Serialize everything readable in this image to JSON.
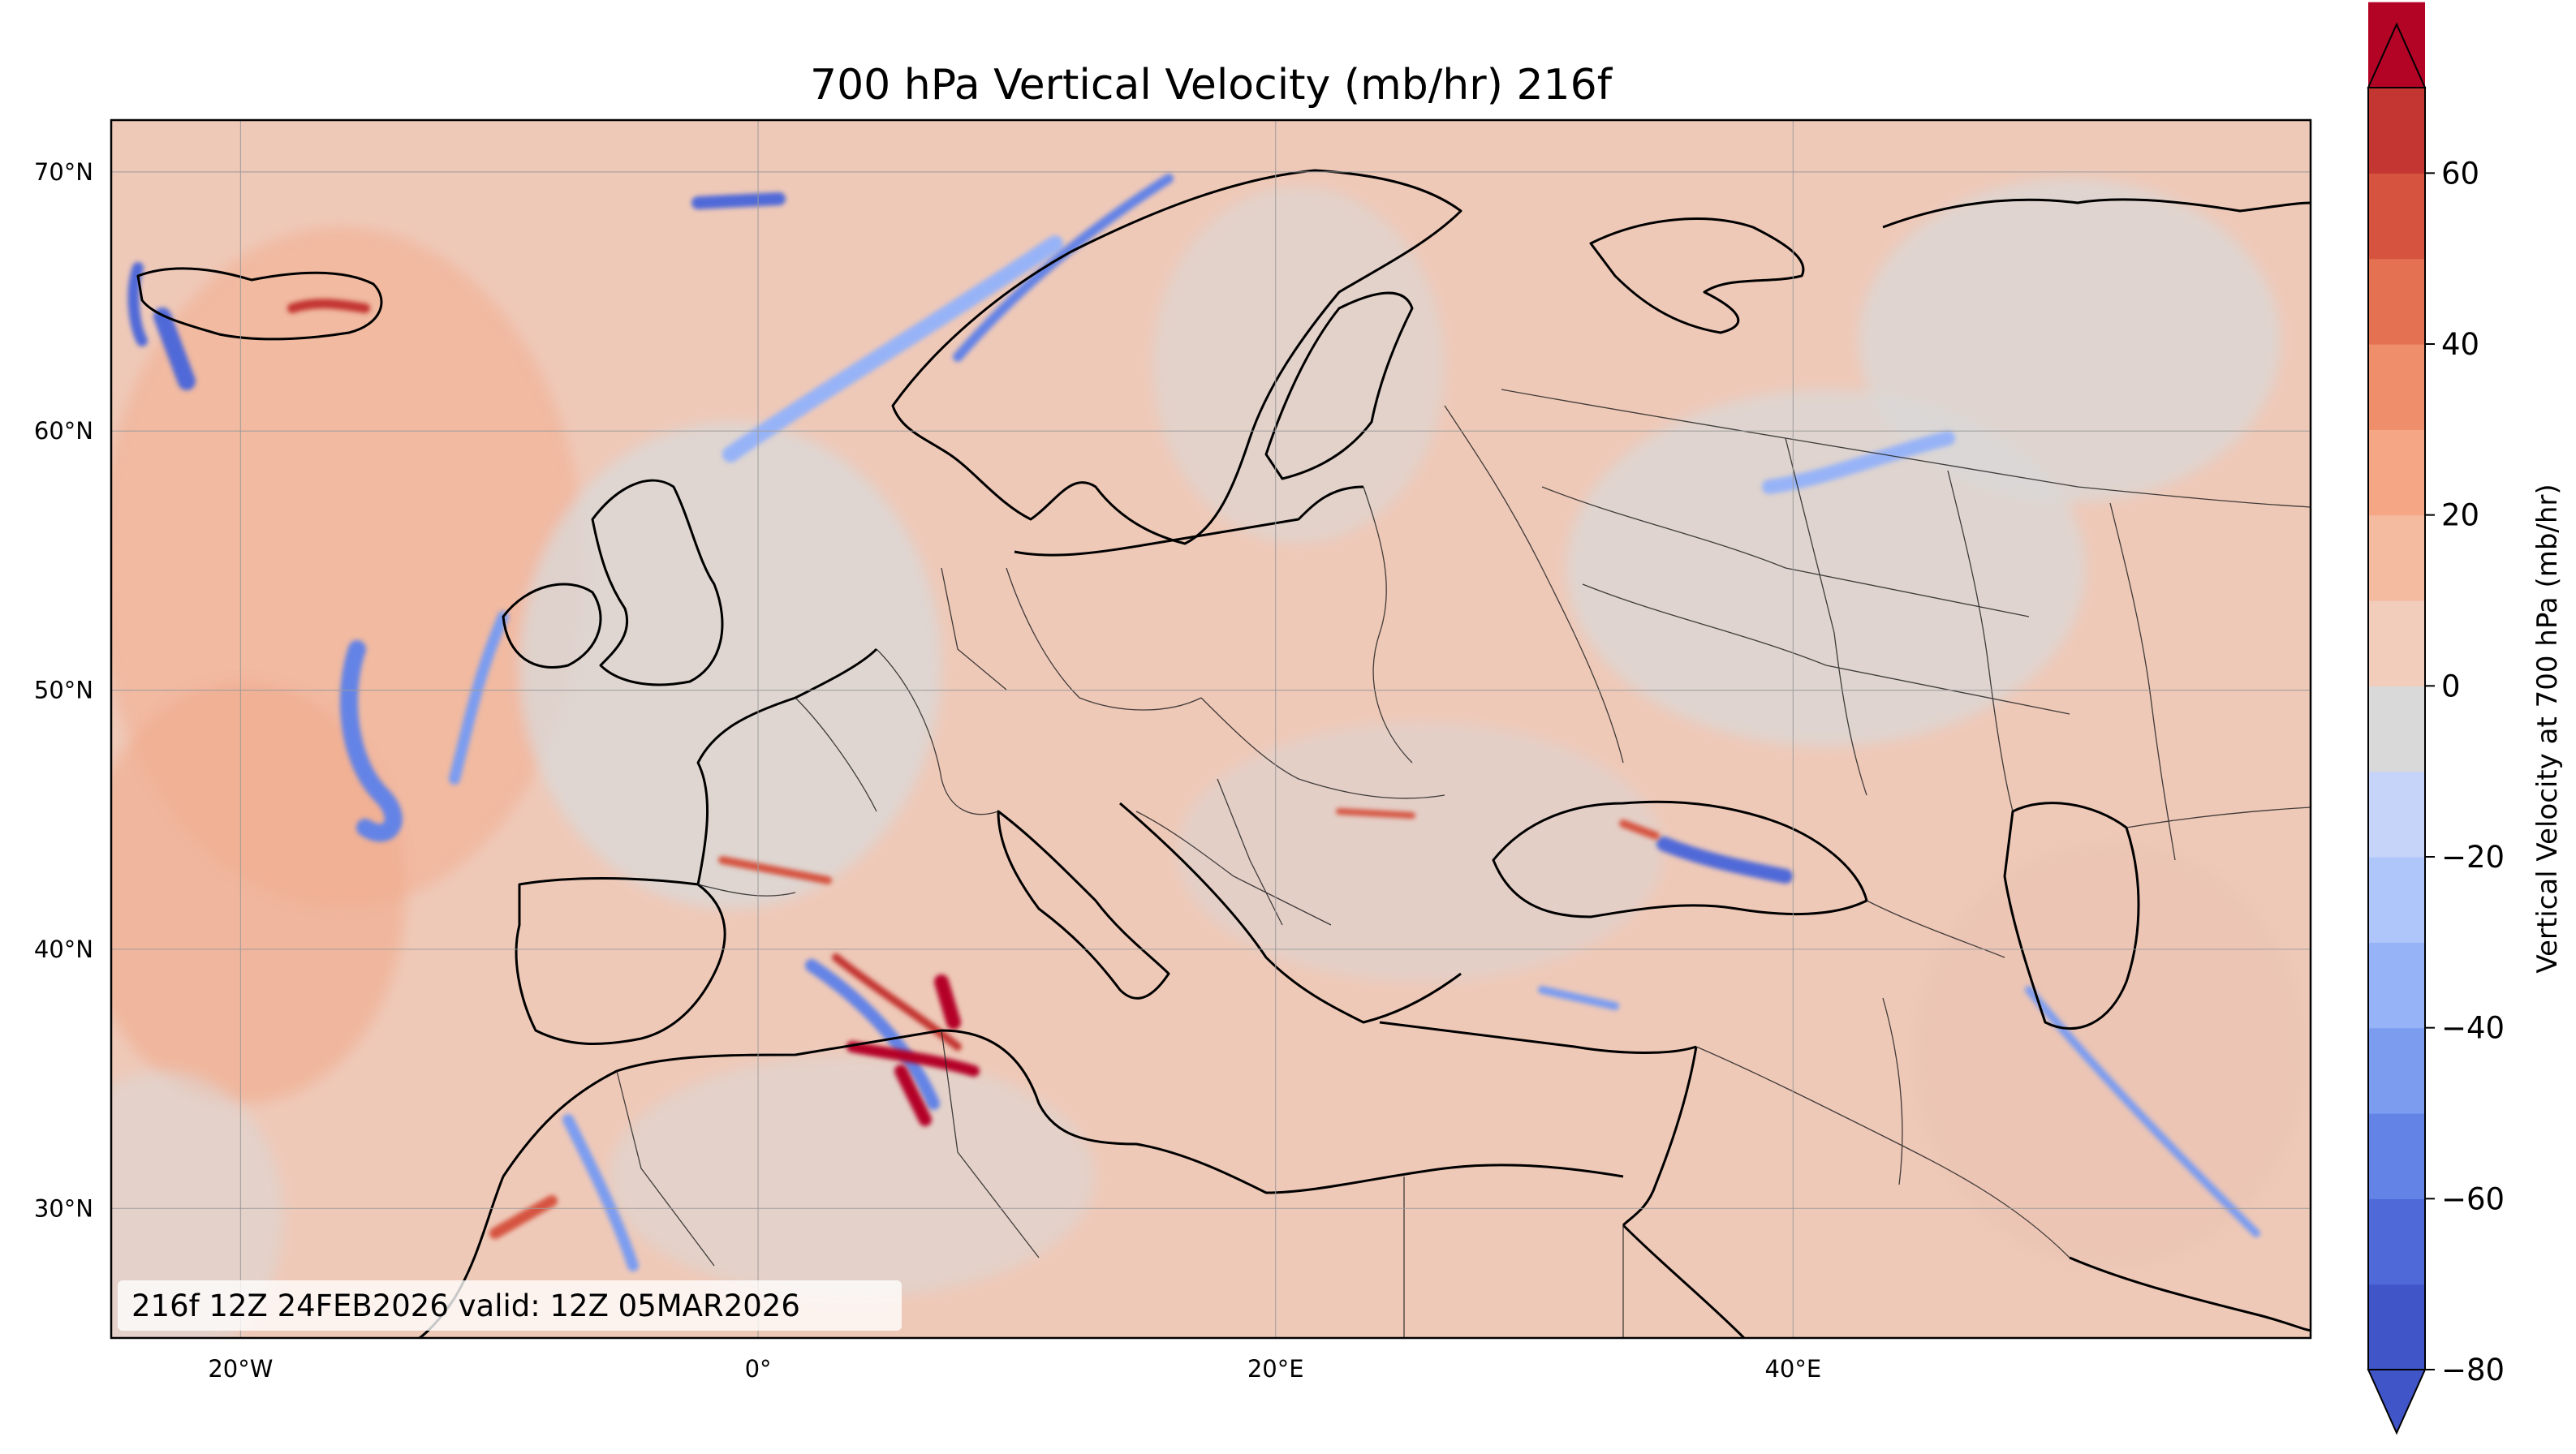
{
  "title": "700 hPa Vertical Velocity (mb/hr) 216f",
  "stamp": "216f 12Z 24FEB2026 valid: 12Z 05MAR2026",
  "colorbar": {
    "label": "Vertical Velocity at 700 hPa (mb/hr)",
    "min": -80,
    "max": 70,
    "step": 10,
    "ticks": [
      "60",
      "40",
      "20",
      "0",
      "−20",
      "−40",
      "−60",
      "−80"
    ],
    "tick_values": [
      60,
      40,
      20,
      0,
      -20,
      -40,
      -60,
      -80
    ],
    "extend": "both",
    "colors": [
      "#4055c8",
      "#4f69d8",
      "#6383e6",
      "#7c9cf0",
      "#97b3f7",
      "#afc6fb",
      "#c5d4f8",
      "#d9d9d9",
      "#f2cdbb",
      "#f5bba0",
      "#f5a685",
      "#ef8e6a",
      "#e47252",
      "#d5533f",
      "#c33632",
      "#b40426"
    ]
  },
  "axes": {
    "lon_range": [
      -25,
      60
    ],
    "lat_range": [
      25,
      72
    ],
    "lon_ticks": [
      "20°W",
      "0°",
      "20°E",
      "40°E"
    ],
    "lon_tick_values": [
      -20,
      0,
      20,
      40
    ],
    "lat_ticks": [
      "70°N",
      "60°N",
      "50°N",
      "40°N",
      "30°N"
    ],
    "lat_tick_values": [
      70,
      60,
      50,
      40,
      30
    ],
    "grid": true
  }
}
